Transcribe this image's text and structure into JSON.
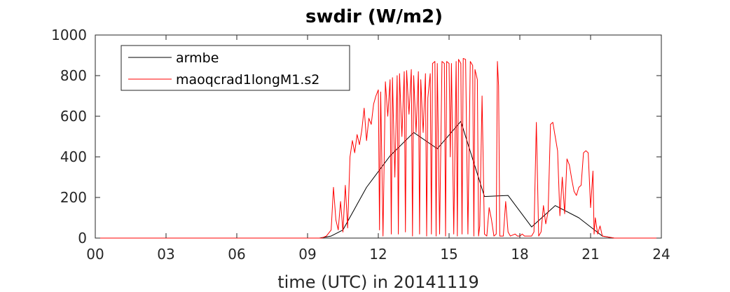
{
  "chart_data": {
    "type": "line",
    "title": "swdir  (W/m2)",
    "xlabel": "time (UTC) in 20141119",
    "ylabel": "",
    "xlim": [
      0,
      24
    ],
    "ylim": [
      0,
      1000
    ],
    "x_ticks": [
      0,
      3,
      6,
      9,
      12,
      15,
      18,
      21,
      24
    ],
    "x_tick_labels": [
      "00",
      "03",
      "06",
      "09",
      "12",
      "15",
      "18",
      "21",
      "24"
    ],
    "y_ticks": [
      0,
      200,
      400,
      600,
      800,
      1000
    ],
    "y_tick_labels": [
      "0",
      "200",
      "400",
      "600",
      "800",
      "1000"
    ],
    "grid": false,
    "legend_position": "top-left",
    "series": [
      {
        "name": "armbe",
        "color": "#000000",
        "points": [
          [
            0,
            0
          ],
          [
            9.5,
            0
          ],
          [
            10.0,
            10
          ],
          [
            10.5,
            40
          ],
          [
            11.5,
            250
          ],
          [
            12.5,
            405
          ],
          [
            13.5,
            520
          ],
          [
            14.5,
            440
          ],
          [
            15.5,
            575
          ],
          [
            16.5,
            205
          ],
          [
            17.5,
            210
          ],
          [
            18.5,
            55
          ],
          [
            19.5,
            160
          ],
          [
            20.5,
            100
          ],
          [
            21.5,
            10
          ],
          [
            22.0,
            0
          ],
          [
            24,
            0
          ]
        ]
      },
      {
        "name": "maoqcrad1longM1.s2",
        "color": "#ff0000",
        "points": [
          [
            0,
            0
          ],
          [
            9.6,
            0
          ],
          [
            9.8,
            10
          ],
          [
            10.0,
            40
          ],
          [
            10.1,
            250
          ],
          [
            10.2,
            90
          ],
          [
            10.3,
            40
          ],
          [
            10.4,
            180
          ],
          [
            10.45,
            110
          ],
          [
            10.5,
            30
          ],
          [
            10.6,
            260
          ],
          [
            10.7,
            50
          ],
          [
            10.8,
            400
          ],
          [
            10.9,
            480
          ],
          [
            11.0,
            420
          ],
          [
            11.1,
            510
          ],
          [
            11.2,
            460
          ],
          [
            11.3,
            530
          ],
          [
            11.4,
            640
          ],
          [
            11.5,
            480
          ],
          [
            11.6,
            590
          ],
          [
            11.7,
            560
          ],
          [
            11.8,
            660
          ],
          [
            11.9,
            700
          ],
          [
            12.0,
            730
          ],
          [
            12.05,
            40
          ],
          [
            12.1,
            720
          ],
          [
            12.2,
            10
          ],
          [
            12.3,
            770
          ],
          [
            12.4,
            600
          ],
          [
            12.5,
            780
          ],
          [
            12.55,
            20
          ],
          [
            12.6,
            790
          ],
          [
            12.7,
            300
          ],
          [
            12.8,
            800
          ],
          [
            12.85,
            20
          ],
          [
            12.9,
            810
          ],
          [
            13.0,
            500
          ],
          [
            13.1,
            820
          ],
          [
            13.15,
            30
          ],
          [
            13.2,
            825
          ],
          [
            13.3,
            610
          ],
          [
            13.4,
            830
          ],
          [
            13.45,
            10
          ],
          [
            13.5,
            800
          ],
          [
            13.6,
            520
          ],
          [
            13.7,
            820
          ],
          [
            13.75,
            20
          ],
          [
            13.8,
            780
          ],
          [
            13.9,
            520
          ],
          [
            14.0,
            810
          ],
          [
            14.05,
            10
          ],
          [
            14.1,
            690
          ],
          [
            14.2,
            810
          ],
          [
            14.25,
            20
          ],
          [
            14.3,
            860
          ],
          [
            14.4,
            870
          ],
          [
            14.45,
            10
          ],
          [
            14.5,
            860
          ],
          [
            14.6,
            20
          ],
          [
            14.7,
            870
          ],
          [
            14.8,
            860
          ],
          [
            14.85,
            10
          ],
          [
            14.9,
            870
          ],
          [
            15.0,
            860
          ],
          [
            15.05,
            400
          ],
          [
            15.1,
            860
          ],
          [
            15.2,
            20
          ],
          [
            15.3,
            870
          ],
          [
            15.35,
            10
          ],
          [
            15.4,
            880
          ],
          [
            15.5,
            860
          ],
          [
            15.55,
            20
          ],
          [
            15.6,
            885
          ],
          [
            15.7,
            880
          ],
          [
            15.8,
            20
          ],
          [
            15.9,
            870
          ],
          [
            16.0,
            850
          ],
          [
            16.05,
            10
          ],
          [
            16.1,
            830
          ],
          [
            16.2,
            780
          ],
          [
            16.25,
            10
          ],
          [
            16.3,
            60
          ],
          [
            16.4,
            700
          ],
          [
            16.5,
            20
          ],
          [
            16.6,
            10
          ],
          [
            16.7,
            150
          ],
          [
            16.8,
            90
          ],
          [
            16.9,
            10
          ],
          [
            17.0,
            20
          ],
          [
            17.05,
            870
          ],
          [
            17.1,
            750
          ],
          [
            17.15,
            10
          ],
          [
            17.3,
            10
          ],
          [
            17.4,
            180
          ],
          [
            17.5,
            30
          ],
          [
            17.6,
            10
          ],
          [
            17.8,
            20
          ],
          [
            17.9,
            10
          ],
          [
            18.0,
            10
          ],
          [
            18.1,
            20
          ],
          [
            18.2,
            10
          ],
          [
            18.3,
            10
          ],
          [
            18.4,
            10
          ],
          [
            18.5,
            10
          ],
          [
            18.6,
            30
          ],
          [
            18.7,
            570
          ],
          [
            18.8,
            10
          ],
          [
            18.9,
            30
          ],
          [
            19.0,
            160
          ],
          [
            19.1,
            70
          ],
          [
            19.2,
            130
          ],
          [
            19.3,
            560
          ],
          [
            19.4,
            570
          ],
          [
            19.5,
            500
          ],
          [
            19.6,
            430
          ],
          [
            19.7,
            110
          ],
          [
            19.8,
            300
          ],
          [
            19.9,
            120
          ],
          [
            20.0,
            390
          ],
          [
            20.1,
            360
          ],
          [
            20.2,
            290
          ],
          [
            20.3,
            230
          ],
          [
            20.4,
            210
          ],
          [
            20.5,
            250
          ],
          [
            20.6,
            260
          ],
          [
            20.7,
            420
          ],
          [
            20.8,
            430
          ],
          [
            20.9,
            420
          ],
          [
            21.0,
            150
          ],
          [
            21.1,
            330
          ],
          [
            21.15,
            20
          ],
          [
            21.2,
            100
          ],
          [
            21.3,
            20
          ],
          [
            21.4,
            60
          ],
          [
            21.5,
            10
          ],
          [
            22.0,
            0
          ],
          [
            24,
            0
          ]
        ]
      }
    ]
  }
}
